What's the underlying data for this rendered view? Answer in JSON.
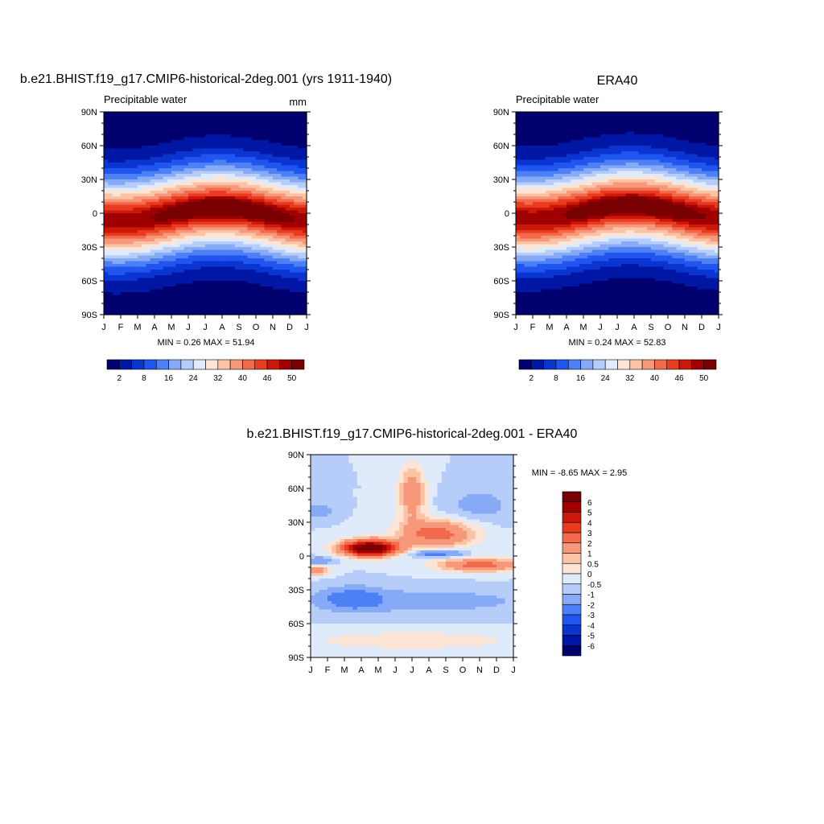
{
  "months": [
    "J",
    "F",
    "M",
    "A",
    "M",
    "J",
    "J",
    "A",
    "S",
    "O",
    "N",
    "D",
    "J"
  ],
  "lat_labels": [
    "90N",
    "60N",
    "30N",
    "0",
    "30S",
    "60S",
    "90S"
  ],
  "chart_data": [
    {
      "id": "model",
      "type": "heatmap",
      "title": "b.e21.BHIST.f19_g17.CMIP6-historical-2deg.001 (yrs 1911-1940)",
      "left_label": "Precipitable water",
      "right_label": "mm",
      "xlabel": "",
      "ylabel": "",
      "x_range": [
        0,
        12
      ],
      "y_range": [
        -90,
        90
      ],
      "stats": "MIN =   0.26 MAX =  51.94",
      "min": 0.26,
      "max": 51.94,
      "itcz_shift": 0,
      "peak": 51.94,
      "colorbar": {
        "orientation": "horizontal",
        "labels": [
          "2",
          "8",
          "16",
          "24",
          "32",
          "40",
          "46",
          "50"
        ],
        "colors": [
          "#00006e",
          "#0017a5",
          "#0a35d0",
          "#2055f0",
          "#4d80f5",
          "#86aaf6",
          "#b5cdf8",
          "#dfeafb",
          "#fde5d5",
          "#fbc3a6",
          "#f7987a",
          "#f2694b",
          "#e83b20",
          "#cc1808",
          "#a00000",
          "#780000"
        ]
      }
    },
    {
      "id": "obs",
      "type": "heatmap",
      "title": "ERA40",
      "left_label": "Precipitable water",
      "right_label": "",
      "xlabel": "",
      "ylabel": "",
      "x_range": [
        0,
        12
      ],
      "y_range": [
        -90,
        90
      ],
      "stats": "MIN =   0.24 MAX =  52.83",
      "min": 0.24,
      "max": 52.83,
      "itcz_shift": 2,
      "peak": 52.83,
      "colorbar": {
        "orientation": "horizontal",
        "labels": [
          "2",
          "8",
          "16",
          "24",
          "32",
          "40",
          "46",
          "50"
        ],
        "colors": [
          "#00006e",
          "#0017a5",
          "#0a35d0",
          "#2055f0",
          "#4d80f5",
          "#86aaf6",
          "#b5cdf8",
          "#dfeafb",
          "#fde5d5",
          "#fbc3a6",
          "#f7987a",
          "#f2694b",
          "#e83b20",
          "#cc1808",
          "#a00000",
          "#780000"
        ]
      }
    },
    {
      "id": "diff",
      "type": "heatmap",
      "title": "b.e21.BHIST.f19_g17.CMIP6-historical-2deg.001 - ERA40",
      "left_label": "",
      "right_label": "",
      "xlabel": "",
      "ylabel": "",
      "x_range": [
        0,
        12
      ],
      "y_range": [
        -90,
        90
      ],
      "stats": "MIN =  -8.65 MAX =   2.95",
      "min": -8.65,
      "max": 2.95,
      "colorbar": {
        "orientation": "vertical",
        "labels": [
          "6",
          "5",
          "4",
          "3",
          "2",
          "1",
          "0.5",
          "0",
          "-0.5",
          "-1",
          "-2",
          "-3",
          "-4",
          "-5",
          "-6"
        ],
        "colors": [
          "#780000",
          "#a00000",
          "#cc1808",
          "#e83b20",
          "#f2694b",
          "#f7987a",
          "#fbc3a6",
          "#fde5d5",
          "#dfeafb",
          "#b5cdf8",
          "#86aaf6",
          "#4d80f5",
          "#2055f0",
          "#0a35d0",
          "#0017a5",
          "#00006e"
        ]
      }
    }
  ]
}
